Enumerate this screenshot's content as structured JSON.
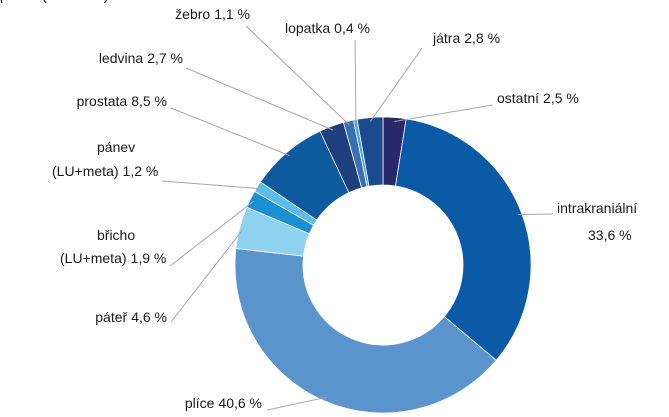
{
  "chart_data": {
    "type": "donut",
    "categories": [
      "ostatní",
      "intrakraniální",
      "plíce",
      "páteř",
      "břicho (LU+meta)",
      "pánev (LU+meta)",
      "prostata",
      "ledvina",
      "žebro",
      "lopatka",
      "játra"
    ],
    "values": [
      2.5,
      33.6,
      40.6,
      4.6,
      1.9,
      1.2,
      8.5,
      2.7,
      1.1,
      0.4,
      2.8
    ],
    "value_labels": [
      "2,5 %",
      "33,6 %",
      "40,6 %",
      "4,6 %",
      "1,9 %",
      "1,2 %",
      "8,5 %",
      "2,7 %",
      "1,1 %",
      "0,4 %",
      "2,8 %"
    ],
    "colors": [
      "#28286a",
      "#0b5aa6",
      "#5b93cd",
      "#8fd2f0",
      "#1a8fd2",
      "#5bbbe9",
      "#0d5a9f",
      "#1d3f7e",
      "#3a6fb2",
      "#4aa7e0",
      "#1b4a8f"
    ]
  }
}
